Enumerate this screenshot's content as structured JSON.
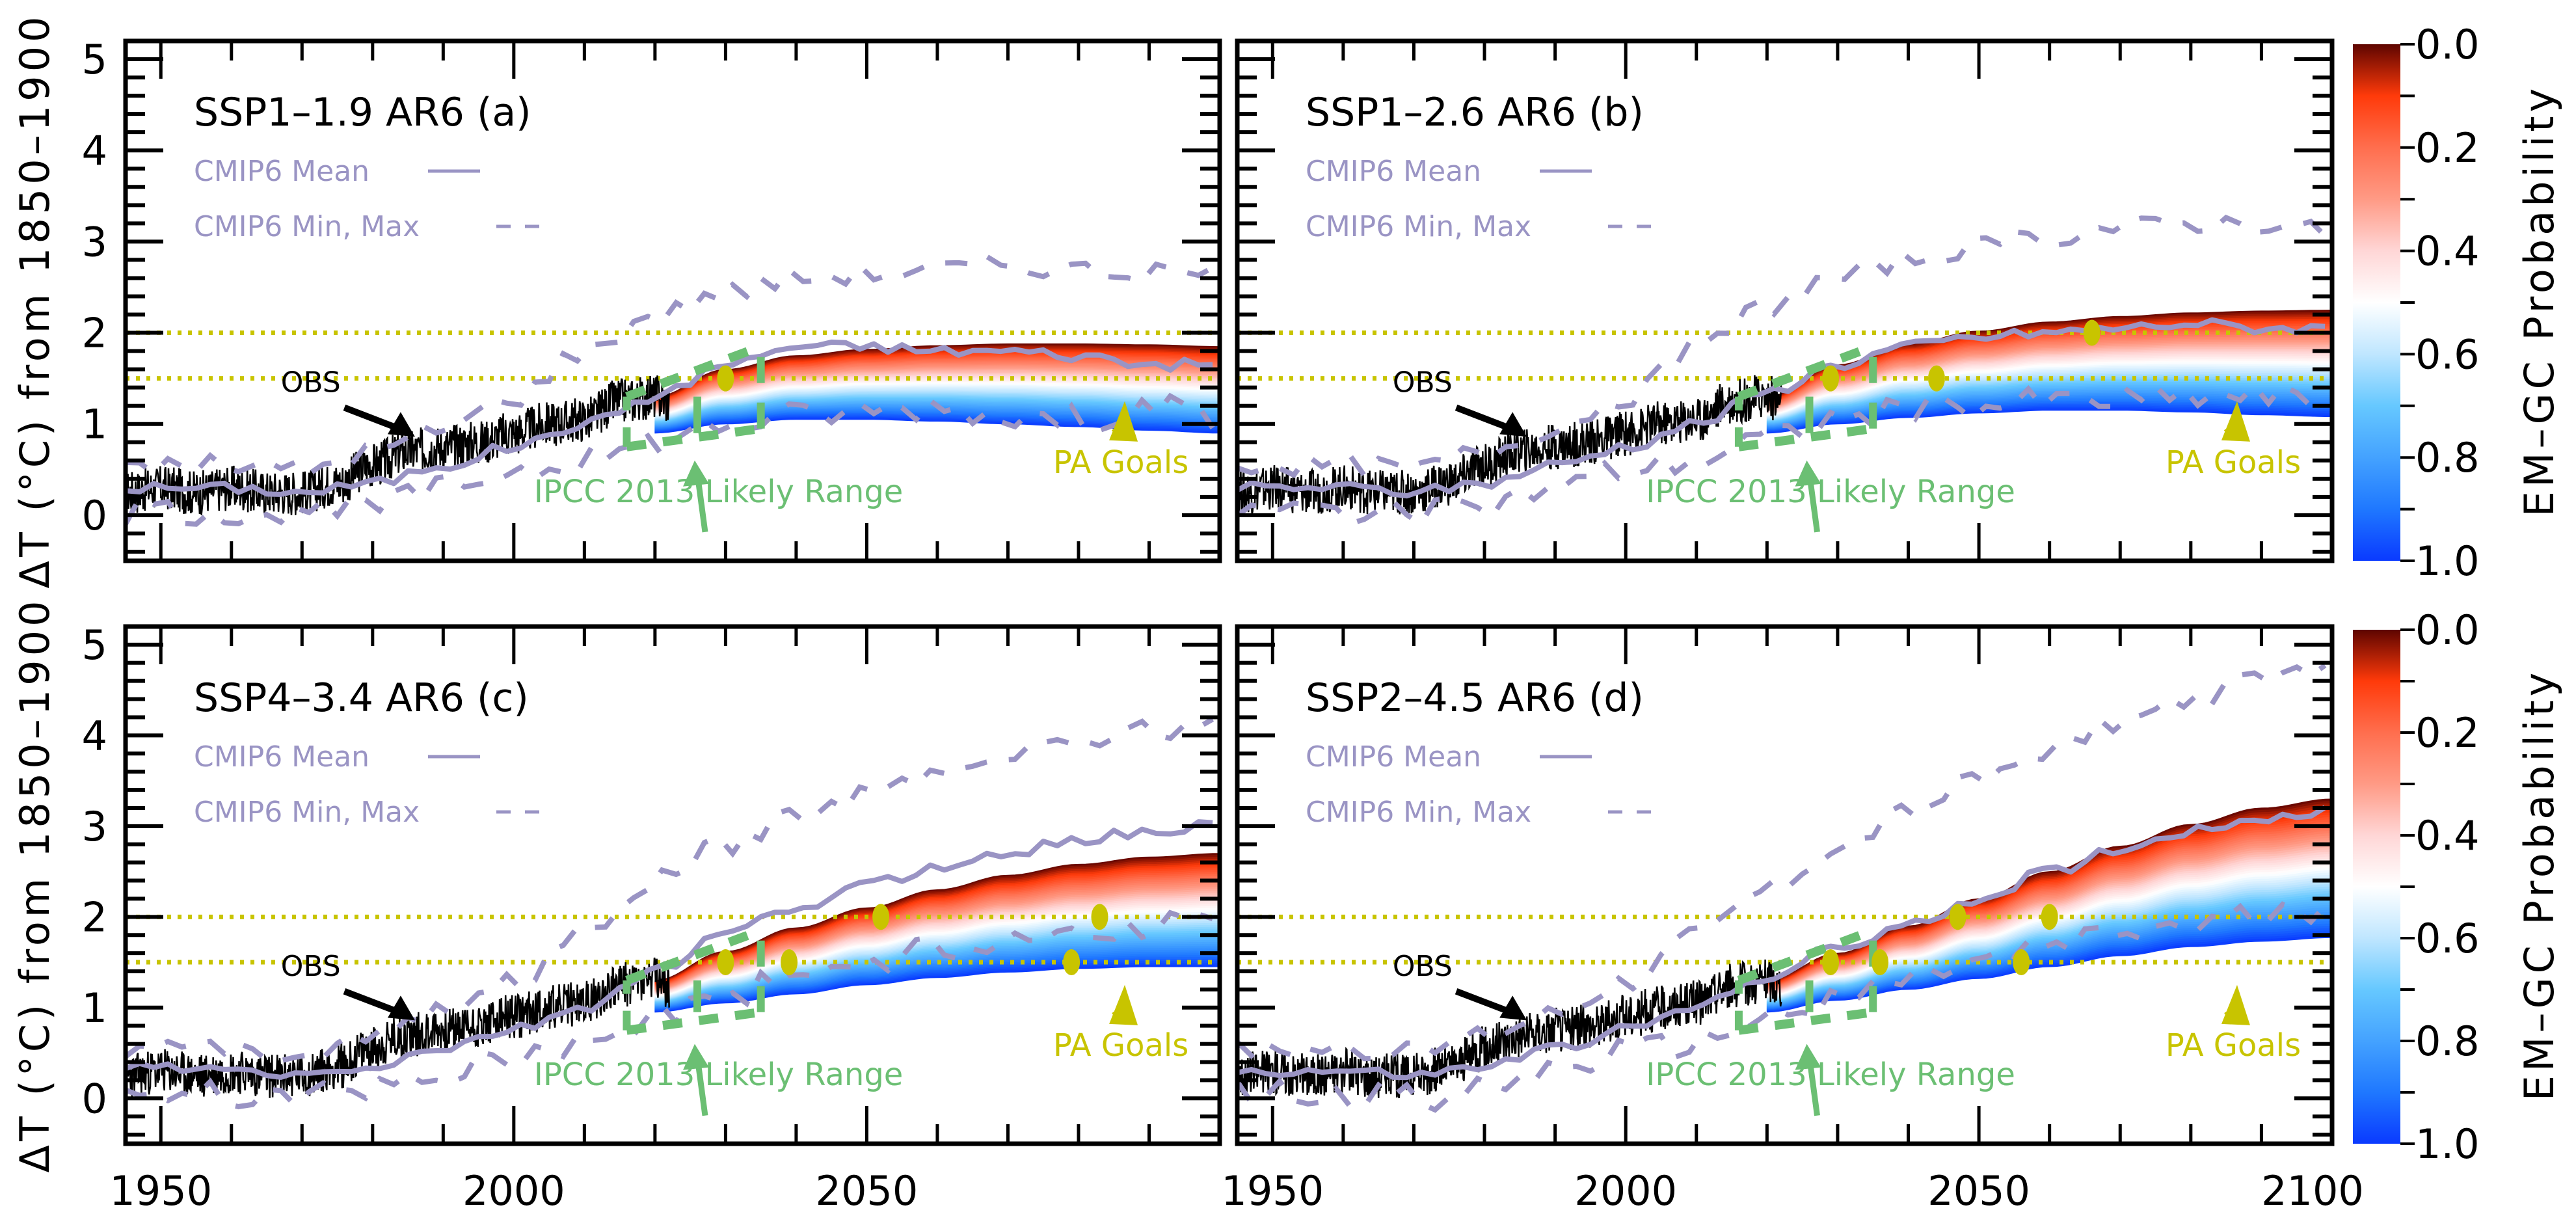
{
  "figure": {
    "ylabel": "ΔT (°C) from 1850–1900",
    "colorbar_label": "EM–GC Probability"
  },
  "colors": {
    "obs": "#000000",
    "cmip6": "#9a94c4",
    "ipcc": "#6bbf73",
    "pa_goals": "#c8c400",
    "colorbar_stops": [
      {
        "p": 0.0,
        "color": "#5e0500"
      },
      {
        "p": 0.1,
        "color": "#ff3a0a"
      },
      {
        "p": 0.2,
        "color": "#ff6e4e"
      },
      {
        "p": 0.3,
        "color": "#ff9a85"
      },
      {
        "p": 0.4,
        "color": "#ffd6d6"
      },
      {
        "p": 0.5,
        "color": "#ffffff"
      },
      {
        "p": 0.6,
        "color": "#bfe6ff"
      },
      {
        "p": 0.7,
        "color": "#66c8ff"
      },
      {
        "p": 0.8,
        "color": "#44a2ff"
      },
      {
        "p": 0.9,
        "color": "#1f78ff"
      },
      {
        "p": 1.0,
        "color": "#0a3aff"
      }
    ]
  },
  "colorbar": {
    "ticks": [
      "0.0",
      "0.2",
      "0.4",
      "0.6",
      "0.8",
      "1.0"
    ],
    "range": [
      0.0,
      1.0
    ]
  },
  "chart_data": [
    {
      "type": "area",
      "panel": "a",
      "title": "SSP1–1.9 AR6  (a)",
      "xlabel": "",
      "ylabel": "ΔT (°C) from 1850–1900",
      "xlim": [
        1945,
        2100
      ],
      "ylim": [
        -0.5,
        5.2
      ],
      "xticks": [
        1950,
        2000,
        2050
      ],
      "xtick_labels": [
        "1950",
        "2000",
        "2050"
      ],
      "yticks": [
        0,
        1,
        2,
        3,
        4,
        5
      ],
      "ytick_labels": [
        "0",
        "1",
        "2",
        "3",
        "4",
        "5"
      ],
      "legend": [
        {
          "label": "CMIP6 Mean",
          "style": "solid"
        },
        {
          "label": "CMIP6 Min, Max",
          "style": "dashed"
        }
      ],
      "annotations": {
        "obs": "OBS",
        "ipcc": "IPCC 2013 Likely Range",
        "pa": "PA Goals"
      },
      "pa_goal_levels": [
        1.5,
        2.0
      ],
      "plume": {
        "x": [
          2020,
          2030,
          2040,
          2050,
          2060,
          2070,
          2080,
          2090,
          2100
        ],
        "upper": [
          1.3,
          1.6,
          1.75,
          1.82,
          1.86,
          1.88,
          1.88,
          1.87,
          1.85
        ],
        "lower": [
          0.9,
          1.0,
          1.05,
          1.05,
          1.03,
          1.0,
          0.97,
          0.93,
          0.9
        ]
      },
      "cmip6_mean": {
        "x": [
          1945,
          1960,
          1970,
          1980,
          1990,
          2000,
          2010,
          2020,
          2030,
          2040,
          2050,
          2060,
          2070,
          2080,
          2090,
          2100
        ],
        "y": [
          0.3,
          0.3,
          0.25,
          0.35,
          0.55,
          0.75,
          1.0,
          1.3,
          1.65,
          1.85,
          1.85,
          1.8,
          1.8,
          1.75,
          1.65,
          1.65
        ]
      },
      "cmip6_max": {
        "x": [
          1945,
          1960,
          1970,
          1980,
          1990,
          2000,
          2010,
          2020,
          2030,
          2040,
          2050,
          2060,
          2070,
          2080,
          2090,
          2100
        ],
        "y": [
          0.55,
          0.55,
          0.5,
          0.7,
          0.95,
          1.3,
          1.8,
          2.2,
          2.45,
          2.6,
          2.65,
          2.7,
          2.75,
          2.7,
          2.65,
          2.65
        ]
      },
      "cmip6_min": {
        "x": [
          1945,
          1960,
          1970,
          1980,
          1990,
          2000,
          2010,
          2020,
          2030,
          2040,
          2050,
          2060,
          2070,
          2080,
          2090,
          2100
        ],
        "y": [
          0.05,
          0.05,
          0.0,
          0.1,
          0.3,
          0.5,
          0.6,
          0.8,
          1.0,
          1.1,
          1.15,
          1.2,
          1.1,
          1.05,
          1.2,
          1.05
        ]
      },
      "ipcc_box": {
        "x": [
          2016,
          2035
        ],
        "lower": [
          0.75,
          0.95
        ],
        "upper": [
          1.3,
          1.85
        ],
        "bar_year": 2026,
        "bar_range": [
          0.9,
          1.3
        ]
      },
      "pa_points": [
        {
          "x": 2030,
          "y": 1.5
        }
      ]
    },
    {
      "type": "area",
      "panel": "b",
      "title": "SSP1–2.6 AR6 (b)",
      "xlabel": "",
      "ylabel": "",
      "xlim": [
        1945,
        2100
      ],
      "ylim": [
        -0.5,
        5.2
      ],
      "xticks": [
        1950,
        2000,
        2050
      ],
      "xtick_labels": [
        "1950",
        "2000",
        "2050"
      ],
      "yticks": [
        0,
        1,
        2,
        3,
        4,
        5
      ],
      "ytick_labels": [],
      "legend": [
        {
          "label": "CMIP6 Mean",
          "style": "solid"
        },
        {
          "label": "CMIP6 Min, Max",
          "style": "dashed"
        }
      ],
      "annotations": {
        "obs": "OBS",
        "ipcc": "IPCC 2013 Likely Range",
        "pa": "PA Goals"
      },
      "pa_goal_levels": [
        1.5,
        2.0
      ],
      "plume": {
        "x": [
          2020,
          2030,
          2040,
          2050,
          2060,
          2070,
          2080,
          2090,
          2100
        ],
        "upper": [
          1.3,
          1.65,
          1.88,
          2.02,
          2.12,
          2.18,
          2.22,
          2.24,
          2.25
        ],
        "lower": [
          0.9,
          1.0,
          1.07,
          1.12,
          1.15,
          1.15,
          1.13,
          1.1,
          1.08
        ]
      },
      "cmip6_mean": {
        "x": [
          1945,
          1960,
          1970,
          1980,
          1990,
          2000,
          2010,
          2020,
          2030,
          2040,
          2050,
          2060,
          2070,
          2080,
          2090,
          2100
        ],
        "y": [
          0.3,
          0.3,
          0.25,
          0.35,
          0.55,
          0.75,
          1.0,
          1.35,
          1.65,
          1.85,
          1.95,
          2.0,
          2.05,
          2.1,
          2.05,
          2.05
        ]
      },
      "cmip6_max": {
        "x": [
          1945,
          1960,
          1970,
          1980,
          1990,
          2000,
          2010,
          2020,
          2030,
          2040,
          2050,
          2060,
          2070,
          2080,
          2090,
          2100
        ],
        "y": [
          0.55,
          0.55,
          0.5,
          0.7,
          0.95,
          1.3,
          1.8,
          2.3,
          2.6,
          2.8,
          2.95,
          3.05,
          3.15,
          3.2,
          3.2,
          3.1
        ]
      },
      "cmip6_min": {
        "x": [
          1945,
          1960,
          1970,
          1980,
          1990,
          2000,
          2010,
          2020,
          2030,
          2040,
          2050,
          2060,
          2070,
          2080,
          2090,
          2100
        ],
        "y": [
          0.05,
          0.05,
          0.0,
          0.1,
          0.3,
          0.5,
          0.6,
          0.85,
          1.05,
          1.15,
          1.2,
          1.25,
          1.25,
          1.3,
          1.3,
          1.25
        ]
      },
      "ipcc_box": {
        "x": [
          2016,
          2035
        ],
        "lower": [
          0.75,
          0.95
        ],
        "upper": [
          1.3,
          1.85
        ],
        "bar_year": 2026,
        "bar_range": [
          0.9,
          1.3
        ]
      },
      "pa_points": [
        {
          "x": 2029,
          "y": 1.5
        },
        {
          "x": 2044,
          "y": 1.5
        },
        {
          "x": 2066,
          "y": 2.0
        }
      ]
    },
    {
      "type": "area",
      "panel": "c",
      "title": "SSP4–3.4 AR6 (c)",
      "xlabel": "",
      "ylabel": "ΔT (°C) from 1850–1900",
      "xlim": [
        1945,
        2100
      ],
      "ylim": [
        -0.5,
        5.2
      ],
      "xticks": [
        1950,
        2000,
        2050
      ],
      "xtick_labels": [
        "1950",
        "2000",
        "2050"
      ],
      "yticks": [
        0,
        1,
        2,
        3,
        4,
        5
      ],
      "ytick_labels": [
        "0",
        "1",
        "2",
        "3",
        "4",
        "5"
      ],
      "legend": [
        {
          "label": "CMIP6 Mean",
          "style": "solid"
        },
        {
          "label": "CMIP6 Min, Max",
          "style": "dashed"
        }
      ],
      "annotations": {
        "obs": "OBS",
        "ipcc": "IPCC 2013 Likely Range",
        "pa": "PA Goals"
      },
      "pa_goal_levels": [
        1.5,
        2.0
      ],
      "plume": {
        "x": [
          2020,
          2030,
          2040,
          2050,
          2060,
          2070,
          2080,
          2090,
          2100
        ],
        "upper": [
          1.3,
          1.62,
          1.88,
          2.1,
          2.3,
          2.46,
          2.58,
          2.66,
          2.7
        ],
        "lower": [
          0.95,
          1.05,
          1.15,
          1.25,
          1.33,
          1.39,
          1.43,
          1.45,
          1.45
        ]
      },
      "cmip6_mean": {
        "x": [
          1945,
          1960,
          1970,
          1980,
          1990,
          2000,
          2010,
          2020,
          2030,
          2040,
          2050,
          2060,
          2070,
          2080,
          2090,
          2100
        ],
        "y": [
          0.35,
          0.3,
          0.25,
          0.35,
          0.55,
          0.75,
          1.0,
          1.4,
          1.8,
          2.1,
          2.35,
          2.55,
          2.7,
          2.85,
          2.95,
          3.0
        ]
      },
      "cmip6_max": {
        "x": [
          1945,
          1960,
          1970,
          1980,
          1990,
          2000,
          2010,
          2020,
          2030,
          2040,
          2050,
          2060,
          2070,
          2080,
          2090,
          2100
        ],
        "y": [
          0.55,
          0.55,
          0.5,
          0.7,
          0.95,
          1.3,
          1.8,
          2.4,
          2.8,
          3.1,
          3.35,
          3.6,
          3.8,
          3.95,
          4.05,
          4.1
        ]
      },
      "cmip6_min": {
        "x": [
          1945,
          1960,
          1970,
          1980,
          1990,
          2000,
          2010,
          2020,
          2030,
          2040,
          2050,
          2060,
          2070,
          2080,
          2090,
          2100
        ],
        "y": [
          0.05,
          0.05,
          0.0,
          0.1,
          0.3,
          0.5,
          0.6,
          0.9,
          1.15,
          1.35,
          1.5,
          1.65,
          1.75,
          1.85,
          1.9,
          2.0
        ]
      },
      "ipcc_box": {
        "x": [
          2016,
          2035
        ],
        "lower": [
          0.75,
          0.95
        ],
        "upper": [
          1.3,
          1.85
        ],
        "bar_year": 2026,
        "bar_range": [
          0.95,
          1.3
        ]
      },
      "pa_points": [
        {
          "x": 2030,
          "y": 1.5
        },
        {
          "x": 2039,
          "y": 1.5
        },
        {
          "x": 2052,
          "y": 2.0
        },
        {
          "x": 2079,
          "y": 1.5
        },
        {
          "x": 2083,
          "y": 2.0
        }
      ]
    },
    {
      "type": "area",
      "panel": "d",
      "title": "SSP2–4.5 AR6 (d)",
      "xlabel": "",
      "ylabel": "",
      "xlim": [
        1945,
        2100
      ],
      "ylim": [
        -0.5,
        5.2
      ],
      "xticks": [
        1950,
        2000,
        2050,
        2100
      ],
      "xtick_labels": [
        "1950",
        "2000",
        "2050",
        "2100"
      ],
      "yticks": [
        0,
        1,
        2,
        3,
        4,
        5
      ],
      "ytick_labels": [],
      "legend": [
        {
          "label": "CMIP6 Mean",
          "style": "solid"
        },
        {
          "label": "CMIP6 Min, Max",
          "style": "dashed"
        }
      ],
      "annotations": {
        "obs": "OBS",
        "ipcc": "IPCC 2013 Likely Range",
        "pa": "PA Goals"
      },
      "pa_goal_levels": [
        1.5,
        2.0
      ],
      "plume": {
        "x": [
          2020,
          2030,
          2040,
          2050,
          2060,
          2070,
          2080,
          2090,
          2100
        ],
        "upper": [
          1.3,
          1.6,
          1.9,
          2.2,
          2.5,
          2.78,
          3.02,
          3.2,
          3.3
        ],
        "lower": [
          0.95,
          1.08,
          1.2,
          1.32,
          1.45,
          1.57,
          1.67,
          1.73,
          1.77
        ]
      },
      "cmip6_mean": {
        "x": [
          1945,
          1960,
          1970,
          1980,
          1990,
          2000,
          2010,
          2020,
          2030,
          2040,
          2050,
          2060,
          2070,
          2080,
          2090,
          2100
        ],
        "y": [
          0.3,
          0.3,
          0.25,
          0.35,
          0.55,
          0.75,
          1.0,
          1.35,
          1.65,
          1.9,
          2.2,
          2.5,
          2.75,
          2.95,
          3.1,
          3.15
        ]
      },
      "cmip6_max": {
        "x": [
          1945,
          1960,
          1970,
          1980,
          1990,
          2000,
          2010,
          2020,
          2030,
          2040,
          2050,
          2060,
          2070,
          2080,
          2090,
          2100
        ],
        "y": [
          0.55,
          0.55,
          0.5,
          0.7,
          0.95,
          1.3,
          1.8,
          2.3,
          2.75,
          3.15,
          3.5,
          3.85,
          4.15,
          4.4,
          4.6,
          4.8
        ]
      },
      "cmip6_min": {
        "x": [
          1945,
          1960,
          1970,
          1980,
          1990,
          2000,
          2010,
          2020,
          2030,
          2040,
          2050,
          2060,
          2070,
          2080,
          2090,
          2100
        ],
        "y": [
          0.05,
          0.05,
          0.0,
          0.1,
          0.3,
          0.5,
          0.6,
          0.9,
          1.1,
          1.3,
          1.5,
          1.65,
          1.8,
          1.9,
          2.0,
          2.1
        ]
      },
      "ipcc_box": {
        "x": [
          2016,
          2035
        ],
        "lower": [
          0.75,
          0.95
        ],
        "upper": [
          1.3,
          1.85
        ],
        "bar_year": 2026,
        "bar_range": [
          0.95,
          1.3
        ]
      },
      "pa_points": [
        {
          "x": 2029,
          "y": 1.5
        },
        {
          "x": 2036,
          "y": 1.5
        },
        {
          "x": 2047,
          "y": 2.0
        },
        {
          "x": 2056,
          "y": 1.5
        },
        {
          "x": 2060,
          "y": 2.0
        }
      ]
    }
  ],
  "observations": {
    "description": "Monthly observed ΔT, 1945–2022",
    "x": [
      1945,
      1950,
      1955,
      1960,
      1965,
      1970,
      1975,
      1980,
      1985,
      1990,
      1995,
      2000,
      2005,
      2010,
      2015,
      2020,
      2022
    ],
    "y": [
      0.25,
      0.3,
      0.25,
      0.3,
      0.25,
      0.25,
      0.35,
      0.55,
      0.7,
      0.75,
      0.8,
      0.9,
      1.0,
      1.05,
      1.25,
      1.3,
      1.25
    ]
  }
}
